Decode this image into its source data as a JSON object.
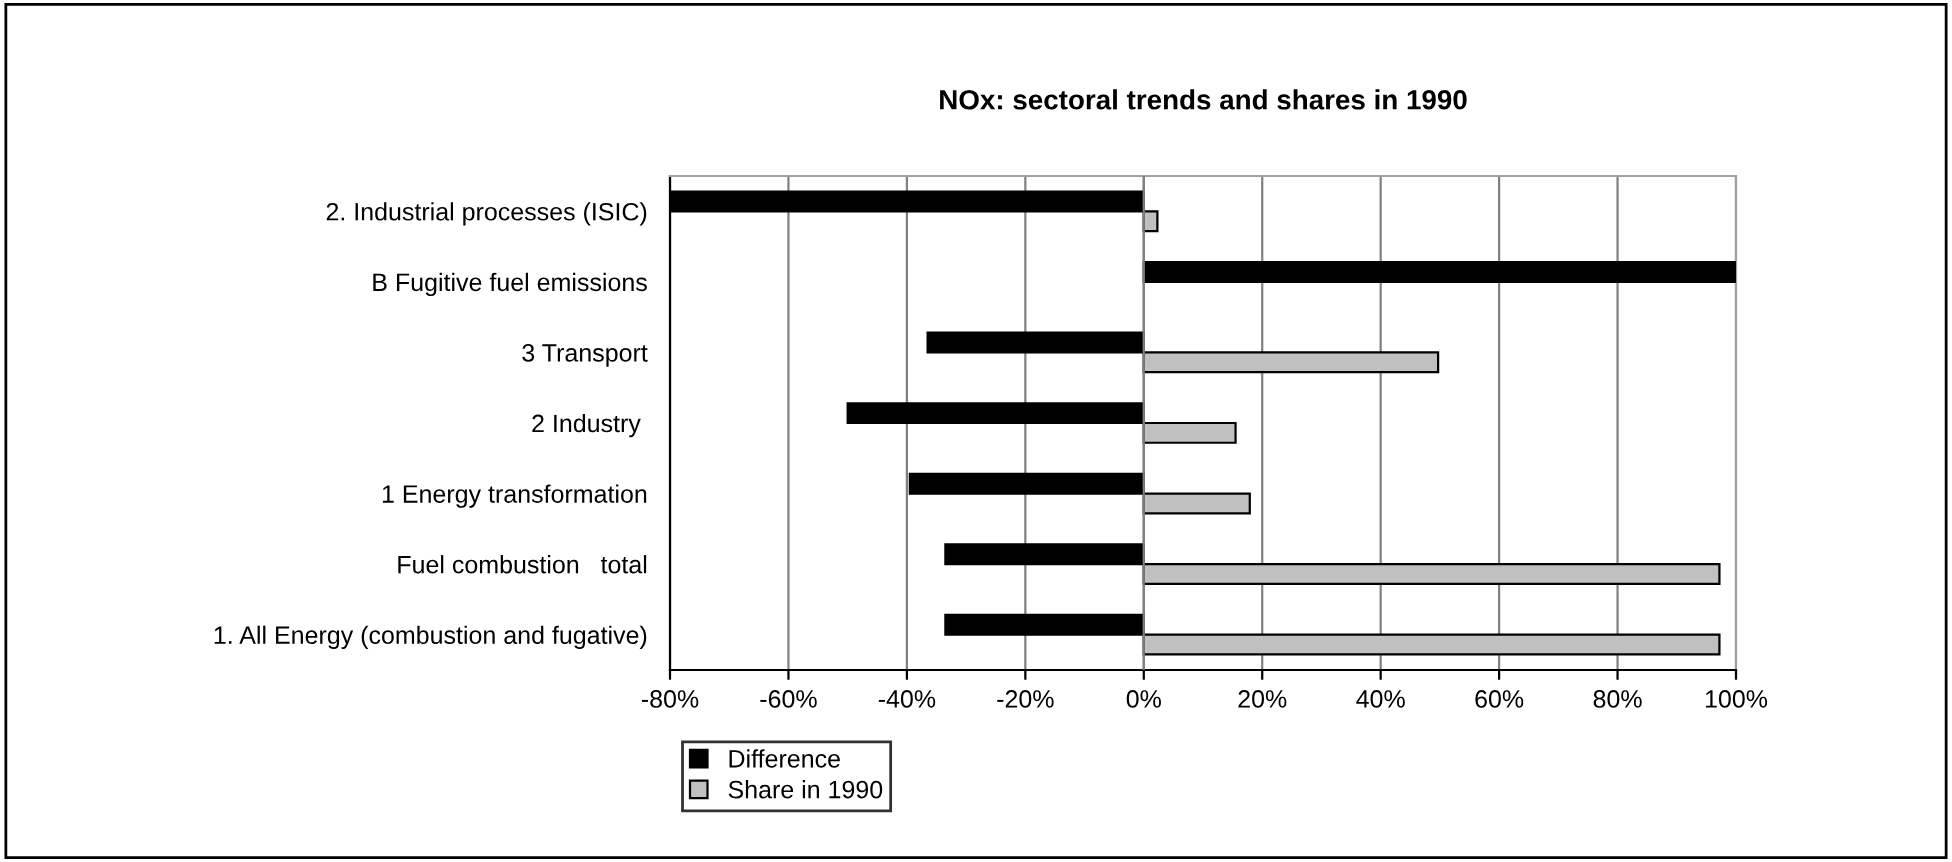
{
  "chart_data": {
    "type": "bar",
    "orientation": "horizontal",
    "title": "NOx: sectoral trends and shares in 1990",
    "categories": [
      "2. Industrial processes (ISIC)",
      "B Fugitive fuel emissions",
      "3 Transport",
      "2 Industry ",
      "1 Energy transformation",
      "Fuel combustion   total",
      "1. All Energy (combustion and fugative)"
    ],
    "series": [
      {
        "name": "Difference",
        "color": "#000000",
        "values": [
          -80,
          100,
          -36.5,
          -50,
          -39.5,
          -33.5,
          -33.5
        ]
      },
      {
        "name": "Share in 1990",
        "color": "#c0c0c0",
        "values": [
          2.3,
          null,
          49.7,
          15.5,
          17.9,
          97.2,
          97.2
        ]
      }
    ],
    "xlim": [
      -80,
      100
    ],
    "xticks": [
      {
        "value": -80,
        "label": "-80%"
      },
      {
        "value": -60,
        "label": "-60%"
      },
      {
        "value": -40,
        "label": "-40%"
      },
      {
        "value": -20,
        "label": "-20%"
      },
      {
        "value": 0,
        "label": "0%"
      },
      {
        "value": 20,
        "label": "20%"
      },
      {
        "value": 40,
        "label": "40%"
      },
      {
        "value": 60,
        "label": "60%"
      },
      {
        "value": 80,
        "label": "80%"
      },
      {
        "value": 100,
        "label": "100%"
      }
    ],
    "grid": "x",
    "legend": "bottom"
  }
}
